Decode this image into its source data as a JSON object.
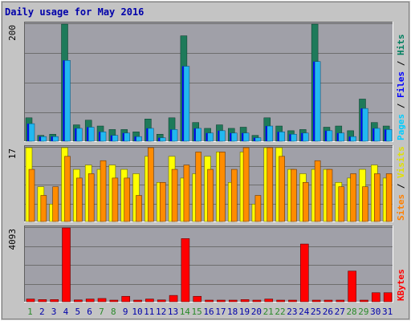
{
  "chart_data": {
    "type": "bar",
    "title": "Daily usage for May 2016",
    "categories": [
      "1",
      "2",
      "3",
      "4",
      "5",
      "6",
      "7",
      "8",
      "9",
      "10",
      "11",
      "12",
      "13",
      "14",
      "15",
      "16",
      "17",
      "18",
      "19",
      "20",
      "21",
      "22",
      "23",
      "24",
      "25",
      "26",
      "27",
      "28",
      "29",
      "30",
      "31"
    ],
    "weekend_days": [
      "1",
      "7",
      "8",
      "14",
      "15",
      "21",
      "22",
      "28",
      "29"
    ],
    "panels": [
      {
        "id": "hits_files_pages",
        "max_label": "200",
        "ymax": 200,
        "right_labels": [
          {
            "text": "Pages",
            "color": "#00ccff"
          },
          {
            "text": " / ",
            "color": "#000000"
          },
          {
            "text": "Files",
            "color": "#0000ff"
          },
          {
            "text": " / ",
            "color": "#000000"
          },
          {
            "text": "Hits",
            "color": "#007f5f"
          }
        ],
        "series": [
          {
            "name": "Hits",
            "color": "#1e7a5a",
            "values": [
              40,
              10,
              12,
              200,
              28,
              36,
              26,
              20,
              20,
              16,
              38,
              12,
              40,
              180,
              32,
              22,
              28,
              22,
              24,
              10,
              40,
              26,
              18,
              20,
              200,
              24,
              26,
              18,
              72,
              32,
              26
            ]
          },
          {
            "name": "Files",
            "color": "#0000ff",
            "values": [
              30,
              8,
              8,
              138,
              22,
              24,
              16,
              10,
              14,
              8,
              22,
              6,
              20,
              128,
              22,
              14,
              18,
              14,
              14,
              6,
              26,
              16,
              12,
              14,
              136,
              18,
              14,
              8,
              56,
              22,
              20
            ]
          },
          {
            "name": "Pages",
            "color": "#22b8f0",
            "values": [
              30,
              8,
              8,
              138,
              22,
              24,
              16,
              10,
              14,
              8,
              22,
              6,
              20,
              128,
              22,
              14,
              18,
              14,
              14,
              6,
              26,
              16,
              12,
              14,
              136,
              18,
              14,
              8,
              56,
              22,
              20
            ]
          }
        ]
      },
      {
        "id": "visits_sites",
        "max_label": "17",
        "ymax": 17,
        "right_labels": [
          {
            "text": "Sites",
            "color": "#ff8000"
          },
          {
            "text": " / ",
            "color": "#000000"
          },
          {
            "text": "Visits",
            "color": "#e0e000"
          }
        ],
        "series": [
          {
            "name": "Visits",
            "color": "#ffff00",
            "values": [
              17,
              8,
              4,
              17,
              12,
              13,
              12,
              13,
              12,
              11,
              15,
              9,
              15,
              10,
              11,
              15,
              16,
              9,
              16,
              4,
              17,
              17,
              12,
              11,
              12,
              12,
              9,
              10,
              12,
              13,
              10
            ]
          },
          {
            "name": "Sites",
            "color": "#ff8c00",
            "values": [
              12,
              6,
              8,
              15,
              10,
              11,
              14,
              10,
              10,
              6,
              17,
              9,
              12,
              13,
              16,
              12,
              16,
              12,
              17,
              6,
              17,
              15,
              12,
              9,
              14,
              12,
              8,
              11,
              8,
              11,
              11
            ]
          }
        ]
      },
      {
        "id": "kbytes",
        "max_label": "4093",
        "ymax": 4093,
        "right_labels": [
          {
            "text": "KBytes",
            "color": "#ff0000"
          }
        ],
        "series": [
          {
            "name": "KBytes",
            "color": "#ff0000",
            "values": [
              150,
              120,
              120,
              4093,
              100,
              150,
              180,
              40,
              300,
              60,
              150,
              100,
              350,
              3500,
              300,
              70,
              80,
              60,
              120,
              50,
              150,
              80,
              70,
              3200,
              70,
              70,
              50,
              1700,
              70,
              500,
              500
            ]
          }
        ]
      }
    ]
  },
  "colors": {
    "panel_bg": "#a0a0a8",
    "frame_bg": "#c4c4c4",
    "grid": "#6e6e6e",
    "weekday_label": "#0000aa",
    "weekend_label": "#2a8a2a"
  }
}
